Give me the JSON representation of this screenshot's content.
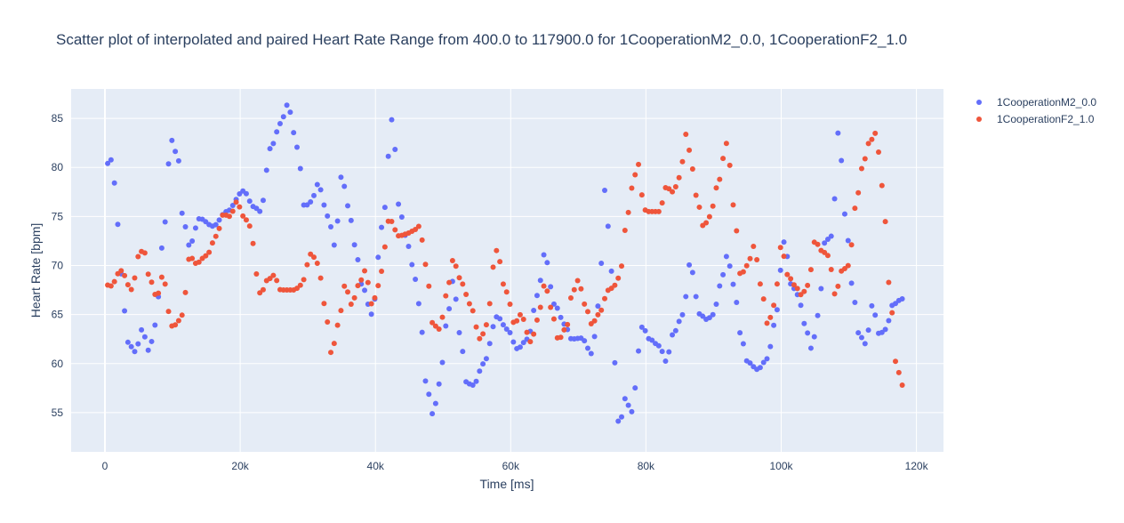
{
  "colors": {
    "plot_bg": "#e5ecf6",
    "grid": "#ffffff",
    "series_1": "#636efa",
    "series_2": "#ef553b",
    "text": "#2a3f5f"
  },
  "chart_data": {
    "type": "scatter",
    "title": "Scatter plot of interpolated and paired Heart Rate Range from 400.0 to 117900.0 for 1CooperationM2_0.0, 1CooperationF2_1.0",
    "xlabel": "Time [ms]",
    "ylabel": "Heart Rate [bpm]",
    "xlim": [
      -5000,
      124000
    ],
    "ylim": [
      51,
      88
    ],
    "x_ticks": [
      0,
      20000,
      40000,
      60000,
      80000,
      100000,
      120000
    ],
    "x_tick_labels": [
      "0",
      "20k",
      "40k",
      "60k",
      "80k",
      "100k",
      "120k"
    ],
    "y_ticks": [
      55,
      60,
      65,
      70,
      75,
      80,
      85
    ],
    "y_tick_labels": [
      "55",
      "60",
      "65",
      "70",
      "75",
      "80",
      "85"
    ],
    "grid": true,
    "legend": "top-right, outside plot",
    "sample_step_ms": 500,
    "series": [
      {
        "name": "1CooperationM2_0.0",
        "color": "#636efa",
        "keypoints": [
          [
            400,
            80.4
          ],
          [
            1000,
            80.8
          ],
          [
            2000,
            74
          ],
          [
            2700,
            66
          ],
          [
            3500,
            62
          ],
          [
            4500,
            61.2
          ],
          [
            5500,
            63.5
          ],
          [
            6500,
            61.3
          ],
          [
            7500,
            64
          ],
          [
            8500,
            72
          ],
          [
            9800,
            82.8
          ],
          [
            10800,
            81
          ],
          [
            11500,
            75
          ],
          [
            12500,
            72
          ],
          [
            14000,
            74.8
          ],
          [
            16000,
            74
          ],
          [
            18000,
            75.5
          ],
          [
            20500,
            77.6
          ],
          [
            22000,
            76
          ],
          [
            23000,
            75.5
          ],
          [
            24500,
            82
          ],
          [
            26000,
            84.5
          ],
          [
            27000,
            86.4
          ],
          [
            28500,
            82
          ],
          [
            29500,
            76
          ],
          [
            30500,
            76.5
          ],
          [
            31500,
            78.3
          ],
          [
            33000,
            75
          ],
          [
            34000,
            72
          ],
          [
            35000,
            79.2
          ],
          [
            36000,
            76
          ],
          [
            37000,
            72
          ],
          [
            38000,
            68
          ],
          [
            39500,
            65
          ],
          [
            41000,
            74
          ],
          [
            42500,
            85
          ],
          [
            43500,
            76
          ],
          [
            44500,
            73
          ],
          [
            45500,
            70
          ],
          [
            46500,
            66
          ],
          [
            47500,
            58
          ],
          [
            48500,
            54.8
          ],
          [
            49500,
            58
          ],
          [
            50500,
            64
          ],
          [
            51500,
            68.5
          ],
          [
            52500,
            63
          ],
          [
            53500,
            58
          ],
          [
            54500,
            57.8
          ],
          [
            56000,
            60
          ],
          [
            58000,
            64.8
          ],
          [
            59500,
            63.5
          ],
          [
            61000,
            61.5
          ],
          [
            62500,
            62.5
          ],
          [
            64000,
            67
          ],
          [
            65000,
            71.2
          ],
          [
            66500,
            66
          ],
          [
            68000,
            64
          ],
          [
            69000,
            62.5
          ],
          [
            70500,
            62.6
          ],
          [
            72000,
            61
          ],
          [
            73000,
            66
          ],
          [
            74000,
            78
          ],
          [
            74800,
            70
          ],
          [
            75500,
            59.5
          ],
          [
            76000,
            53.5
          ],
          [
            77000,
            56.5
          ],
          [
            77800,
            55
          ],
          [
            79500,
            63.8
          ],
          [
            80500,
            62.5
          ],
          [
            82000,
            61.8
          ],
          [
            83000,
            60.2
          ],
          [
            84000,
            63
          ],
          [
            85500,
            65
          ],
          [
            86500,
            70.2
          ],
          [
            88000,
            65
          ],
          [
            89000,
            64.5
          ],
          [
            90000,
            65
          ],
          [
            91000,
            68
          ],
          [
            92000,
            71
          ],
          [
            93000,
            68
          ],
          [
            94000,
            63
          ],
          [
            95000,
            60.2
          ],
          [
            96500,
            59.4
          ],
          [
            98000,
            60.5
          ],
          [
            99000,
            64
          ],
          [
            100500,
            72.5
          ],
          [
            101500,
            68
          ],
          [
            102500,
            67
          ],
          [
            103500,
            64
          ],
          [
            104500,
            61.5
          ],
          [
            105500,
            65
          ],
          [
            106500,
            72.5
          ],
          [
            107500,
            73
          ],
          [
            108500,
            83.8
          ],
          [
            109500,
            75
          ],
          [
            110500,
            68
          ],
          [
            111500,
            63
          ],
          [
            112500,
            62
          ],
          [
            113500,
            66
          ],
          [
            114500,
            63
          ],
          [
            115500,
            63.5
          ],
          [
            116500,
            66
          ],
          [
            117900,
            66.6
          ]
        ]
      },
      {
        "name": "1CooperationF2_1.0",
        "color": "#ef553b",
        "keypoints": [
          [
            400,
            68
          ],
          [
            1000,
            67.9
          ],
          [
            2000,
            69.2
          ],
          [
            2500,
            69.5
          ],
          [
            3500,
            68
          ],
          [
            4000,
            67.5
          ],
          [
            5000,
            71
          ],
          [
            5700,
            71.7
          ],
          [
            6500,
            69
          ],
          [
            7500,
            67
          ],
          [
            8000,
            67.2
          ],
          [
            8500,
            69
          ],
          [
            9000,
            68
          ],
          [
            9500,
            65
          ],
          [
            10000,
            63.7
          ],
          [
            11000,
            64.4
          ],
          [
            11500,
            65
          ],
          [
            12000,
            67.5
          ],
          [
            12500,
            71
          ],
          [
            13500,
            70.2
          ],
          [
            15000,
            71
          ],
          [
            16500,
            73
          ],
          [
            17500,
            75.2
          ],
          [
            18500,
            75
          ],
          [
            19500,
            76.5
          ],
          [
            20500,
            75
          ],
          [
            21500,
            74
          ],
          [
            22500,
            69
          ],
          [
            23000,
            67
          ],
          [
            24000,
            68.5
          ],
          [
            25000,
            69
          ],
          [
            26000,
            67.5
          ],
          [
            27000,
            67.5
          ],
          [
            28000,
            67.5
          ],
          [
            29000,
            68
          ],
          [
            30500,
            71.2
          ],
          [
            31500,
            70.2
          ],
          [
            32500,
            66
          ],
          [
            33500,
            61
          ],
          [
            34500,
            64
          ],
          [
            35500,
            68
          ],
          [
            36500,
            66
          ],
          [
            37500,
            68
          ],
          [
            38500,
            69.5
          ],
          [
            39500,
            66
          ],
          [
            40500,
            68
          ],
          [
            41500,
            72
          ],
          [
            42000,
            74.8
          ],
          [
            43500,
            73
          ],
          [
            44500,
            73.2
          ],
          [
            45500,
            73.5
          ],
          [
            46500,
            74
          ],
          [
            47500,
            70
          ],
          [
            48500,
            64
          ],
          [
            49500,
            63.5
          ],
          [
            50500,
            67
          ],
          [
            51500,
            70.6
          ],
          [
            52500,
            68.7
          ],
          [
            53500,
            67
          ],
          [
            54000,
            66
          ],
          [
            55500,
            62.5
          ],
          [
            56500,
            64
          ],
          [
            57500,
            70
          ],
          [
            58000,
            71.7
          ],
          [
            59000,
            68
          ],
          [
            60000,
            66
          ],
          [
            60500,
            64
          ],
          [
            61500,
            65
          ],
          [
            63000,
            62.2
          ],
          [
            64000,
            64.5
          ],
          [
            65000,
            68
          ],
          [
            66500,
            64.5
          ],
          [
            67000,
            62.4
          ],
          [
            68500,
            64
          ],
          [
            69000,
            67
          ],
          [
            70000,
            68.5
          ],
          [
            71000,
            66
          ],
          [
            72000,
            64
          ],
          [
            73000,
            65
          ],
          [
            74500,
            67.5
          ],
          [
            75500,
            68
          ],
          [
            76500,
            70
          ],
          [
            77000,
            74
          ],
          [
            78000,
            78
          ],
          [
            78800,
            80.5
          ],
          [
            79500,
            77
          ],
          [
            80000,
            75.5
          ],
          [
            82000,
            75.5
          ],
          [
            83000,
            78
          ],
          [
            84000,
            77.5
          ],
          [
            85000,
            79
          ],
          [
            86000,
            83.5
          ],
          [
            86800,
            80
          ],
          [
            87500,
            77
          ],
          [
            88500,
            74
          ],
          [
            89500,
            75
          ],
          [
            90500,
            78
          ],
          [
            92000,
            82.5
          ],
          [
            93000,
            76
          ],
          [
            94000,
            69
          ],
          [
            95000,
            70
          ],
          [
            96000,
            72
          ],
          [
            97000,
            68
          ],
          [
            98000,
            64
          ],
          [
            99000,
            66
          ],
          [
            100000,
            72
          ],
          [
            101000,
            69
          ],
          [
            102000,
            68
          ],
          [
            103000,
            67
          ],
          [
            104000,
            68
          ],
          [
            105000,
            72.5
          ],
          [
            106000,
            71.5
          ],
          [
            107000,
            71
          ],
          [
            108000,
            67
          ],
          [
            109000,
            69.5
          ],
          [
            110000,
            70
          ],
          [
            111000,
            76
          ],
          [
            112000,
            80
          ],
          [
            113000,
            82.5
          ],
          [
            114000,
            83.5
          ],
          [
            115000,
            78
          ],
          [
            116000,
            68
          ],
          [
            117000,
            60
          ],
          [
            117900,
            57.8
          ]
        ]
      }
    ]
  }
}
